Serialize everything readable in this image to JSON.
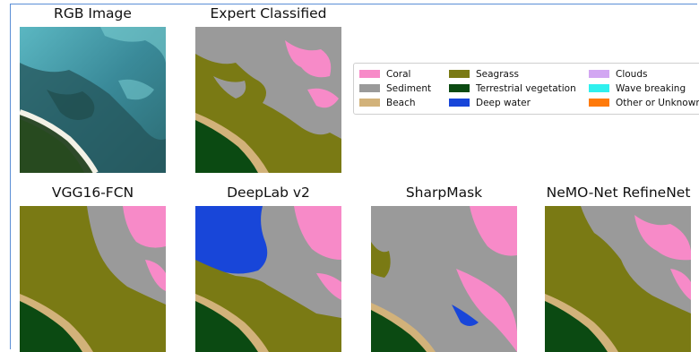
{
  "figure": {
    "panels": [
      {
        "title": "RGB Image"
      },
      {
        "title": "Expert Classified"
      },
      {
        "title": "VGG16-FCN"
      },
      {
        "title": "DeepLab v2"
      },
      {
        "title": "SharpMask"
      },
      {
        "title": "NeMO-Net RefineNet"
      }
    ],
    "legend": [
      {
        "label": "Coral",
        "color": "#f78ac8"
      },
      {
        "label": "Sediment",
        "color": "#9a9a9a"
      },
      {
        "label": "Beach",
        "color": "#d2b27a"
      },
      {
        "label": "Seagrass",
        "color": "#7a7a14"
      },
      {
        "label": "Terrestrial vegetation",
        "color": "#0b4a12"
      },
      {
        "label": "Deep water",
        "color": "#1846d9"
      },
      {
        "label": "Clouds",
        "color": "#d2a6f2"
      },
      {
        "label": "Wave breaking",
        "color": "#2ff0ee"
      },
      {
        "label": "Other or Unknown",
        "color": "#ff7a0a"
      }
    ]
  }
}
